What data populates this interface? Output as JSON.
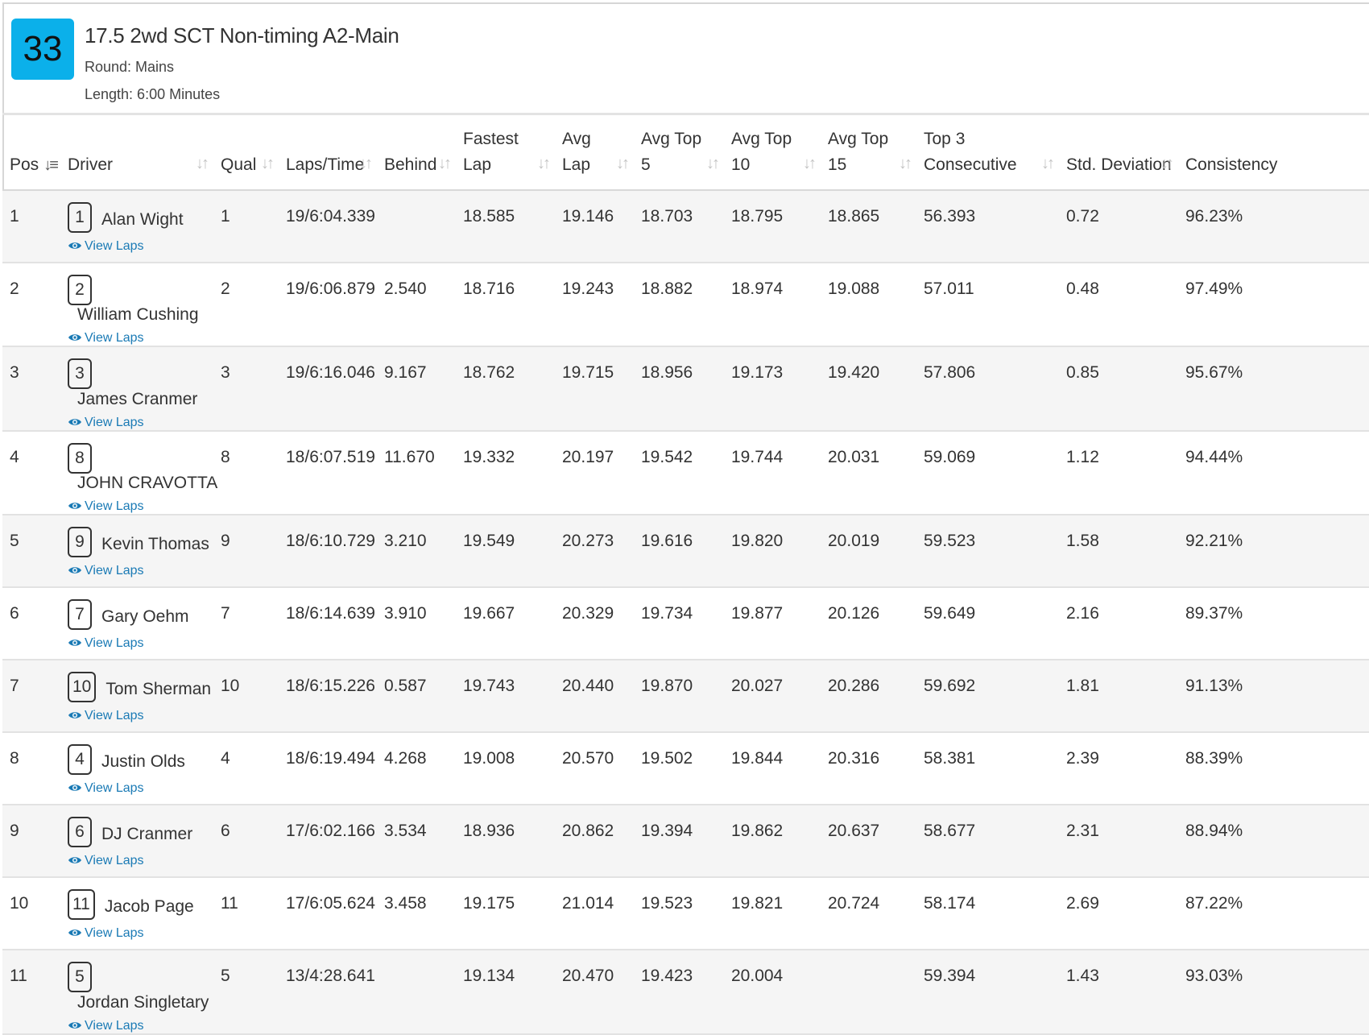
{
  "race": {
    "number": "33",
    "title": "17.5 2wd SCT Non-timing A2-Main",
    "round": "Round: Mains",
    "length": "Length: 6:00 Minutes"
  },
  "headers": {
    "pos": "Pos",
    "driver": "Driver",
    "qual": "Qual",
    "laps_time": "Laps/Time",
    "behind": "Behind",
    "fastest_lap_1": "Fastest",
    "fastest_lap_2": "Lap",
    "avg_lap_1": "Avg",
    "avg_lap_2": "Lap",
    "avg_top5_1": "Avg Top",
    "avg_top5_2": "5",
    "avg_top10_1": "Avg Top",
    "avg_top10_2": "10",
    "avg_top15_1": "Avg Top",
    "avg_top15_2": "15",
    "top3_consecutive": "Top 3 Consecutive",
    "std_deviation": "Std. Deviation",
    "consistency": "Consistency"
  },
  "view_laps_label": "View Laps",
  "colors": {
    "badge": "#0bb0ea",
    "link": "#1a7ab5",
    "row_alt": "#f5f5f5"
  },
  "rows": [
    {
      "pos": "1",
      "car": "1",
      "driver": "Alan Wight",
      "qual": "1",
      "laps": "19/6:04.339",
      "behind": "",
      "fastest": "18.585",
      "avg": "19.146",
      "top5": "18.703",
      "top10": "18.795",
      "top15": "18.865",
      "top3": "56.393",
      "std": "0.72",
      "cons": "96.23%"
    },
    {
      "pos": "2",
      "car": "2",
      "driver": "William Cushing",
      "qual": "2",
      "laps": "19/6:06.879",
      "behind": "2.540",
      "fastest": "18.716",
      "avg": "19.243",
      "top5": "18.882",
      "top10": "18.974",
      "top15": "19.088",
      "top3": "57.011",
      "std": "0.48",
      "cons": "97.49%"
    },
    {
      "pos": "3",
      "car": "3",
      "driver": "James Cranmer",
      "qual": "3",
      "laps": "19/6:16.046",
      "behind": "9.167",
      "fastest": "18.762",
      "avg": "19.715",
      "top5": "18.956",
      "top10": "19.173",
      "top15": "19.420",
      "top3": "57.806",
      "std": "0.85",
      "cons": "95.67%"
    },
    {
      "pos": "4",
      "car": "8",
      "driver": "JOHN CRAVOTTA",
      "qual": "8",
      "laps": "18/6:07.519",
      "behind": "11.670",
      "fastest": "19.332",
      "avg": "20.197",
      "top5": "19.542",
      "top10": "19.744",
      "top15": "20.031",
      "top3": "59.069",
      "std": "1.12",
      "cons": "94.44%"
    },
    {
      "pos": "5",
      "car": "9",
      "driver": "Kevin Thomas",
      "qual": "9",
      "laps": "18/6:10.729",
      "behind": "3.210",
      "fastest": "19.549",
      "avg": "20.273",
      "top5": "19.616",
      "top10": "19.820",
      "top15": "20.019",
      "top3": "59.523",
      "std": "1.58",
      "cons": "92.21%"
    },
    {
      "pos": "6",
      "car": "7",
      "driver": "Gary Oehm",
      "qual": "7",
      "laps": "18/6:14.639",
      "behind": "3.910",
      "fastest": "19.667",
      "avg": "20.329",
      "top5": "19.734",
      "top10": "19.877",
      "top15": "20.126",
      "top3": "59.649",
      "std": "2.16",
      "cons": "89.37%"
    },
    {
      "pos": "7",
      "car": "10",
      "driver": "Tom Sherman",
      "qual": "10",
      "laps": "18/6:15.226",
      "behind": "0.587",
      "fastest": "19.743",
      "avg": "20.440",
      "top5": "19.870",
      "top10": "20.027",
      "top15": "20.286",
      "top3": "59.692",
      "std": "1.81",
      "cons": "91.13%"
    },
    {
      "pos": "8",
      "car": "4",
      "driver": "Justin Olds",
      "qual": "4",
      "laps": "18/6:19.494",
      "behind": "4.268",
      "fastest": "19.008",
      "avg": "20.570",
      "top5": "19.502",
      "top10": "19.844",
      "top15": "20.316",
      "top3": "58.381",
      "std": "2.39",
      "cons": "88.39%"
    },
    {
      "pos": "9",
      "car": "6",
      "driver": "DJ Cranmer",
      "qual": "6",
      "laps": "17/6:02.166",
      "behind": "3.534",
      "fastest": "18.936",
      "avg": "20.862",
      "top5": "19.394",
      "top10": "19.862",
      "top15": "20.637",
      "top3": "58.677",
      "std": "2.31",
      "cons": "88.94%"
    },
    {
      "pos": "10",
      "car": "11",
      "driver": "Jacob Page",
      "qual": "11",
      "laps": "17/6:05.624",
      "behind": "3.458",
      "fastest": "19.175",
      "avg": "21.014",
      "top5": "19.523",
      "top10": "19.821",
      "top15": "20.724",
      "top3": "58.174",
      "std": "2.69",
      "cons": "87.22%"
    },
    {
      "pos": "11",
      "car": "5",
      "driver": "Jordan Singletary",
      "qual": "5",
      "laps": "13/4:28.641",
      "behind": "",
      "fastest": "19.134",
      "avg": "20.470",
      "top5": "19.423",
      "top10": "20.004",
      "top15": "",
      "top3": "59.394",
      "std": "1.43",
      "cons": "93.03%"
    }
  ]
}
